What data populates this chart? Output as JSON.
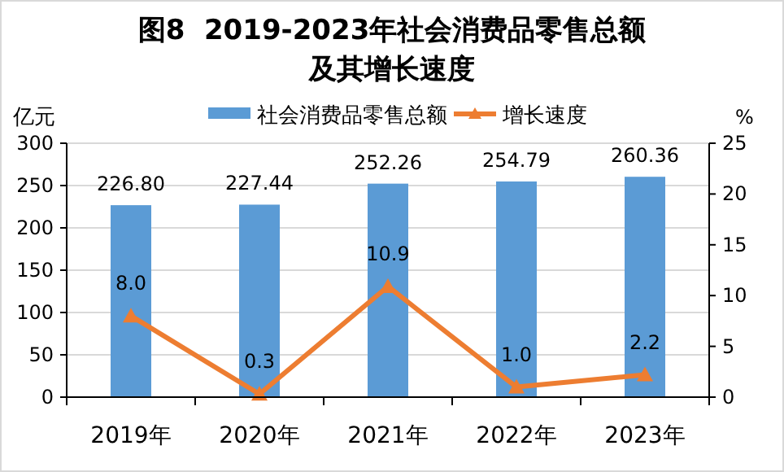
{
  "chart_data": {
    "type": "bar",
    "title": "图8  2019-2023年社会消费品零售总额",
    "subtitle": "及其增长速度",
    "ylabel": "亿元",
    "y2label": "%",
    "categories": [
      "2019年",
      "2020年",
      "2021年",
      "2022年",
      "2023年"
    ],
    "series": [
      {
        "name": "社会消费品零售总额",
        "color": "#5b9bd5",
        "values": [
          226.8,
          227.44,
          252.26,
          254.79,
          260.36
        ],
        "value_labels": [
          "226.80",
          "227.44",
          "252.26",
          "254.79",
          "260.36"
        ]
      },
      {
        "name": "增长速度",
        "type": "line",
        "axis": "y2",
        "color": "#ed7d31",
        "marker": "triangle",
        "values": [
          8.0,
          0.3,
          10.9,
          1.0,
          2.2
        ],
        "value_labels": [
          "8.0",
          "0.3",
          "10.9",
          "1.0",
          "2.2"
        ]
      }
    ],
    "ylim": [
      0,
      300
    ],
    "yticks": [
      0,
      50,
      100,
      150,
      200,
      250,
      300
    ],
    "y2lim": [
      0,
      25
    ],
    "y2ticks": [
      0,
      5,
      10,
      15,
      20,
      25
    ],
    "grid": "y",
    "legend": "top"
  }
}
